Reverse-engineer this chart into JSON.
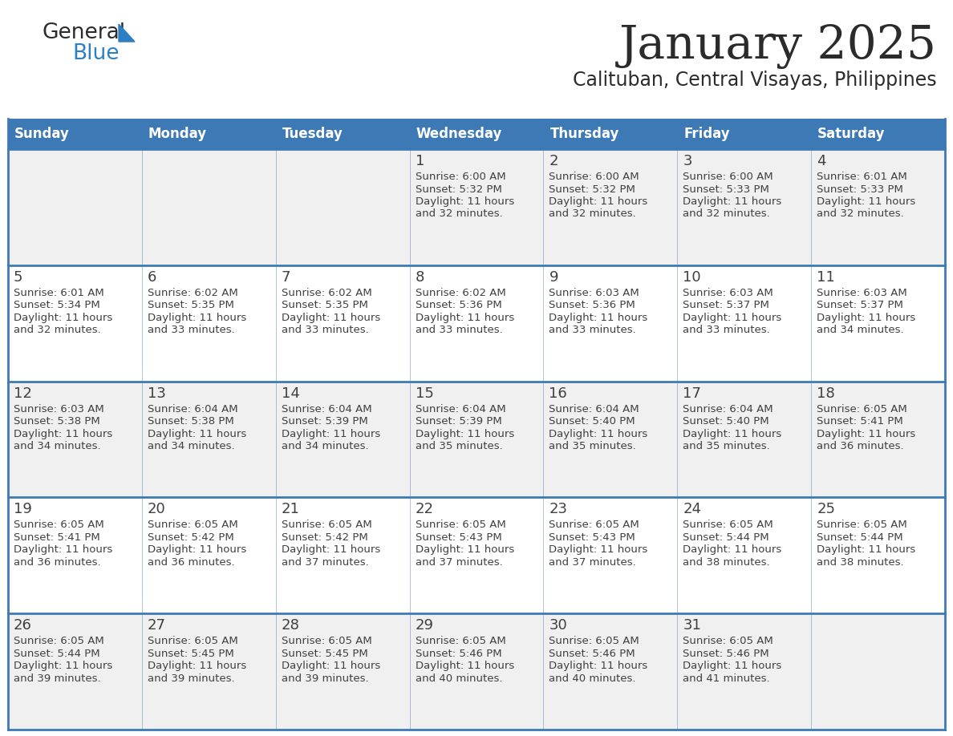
{
  "title": "January 2025",
  "subtitle": "Calituban, Central Visayas, Philippines",
  "header_bg_color": "#3d7ab5",
  "header_text_color": "#ffffff",
  "row_bg_colors": [
    "#f0f0f0",
    "#ffffff"
  ],
  "text_color": "#404040",
  "line_color": "#3d7ab5",
  "days_of_week": [
    "Sunday",
    "Monday",
    "Tuesday",
    "Wednesday",
    "Thursday",
    "Friday",
    "Saturday"
  ],
  "logo_color1": "#2b2b2b",
  "logo_color2": "#2b7fc2",
  "calendar_data": [
    [
      {
        "day": "",
        "sunrise": "",
        "sunset": "",
        "daylight_h": "",
        "daylight_m": ""
      },
      {
        "day": "",
        "sunrise": "",
        "sunset": "",
        "daylight_h": "",
        "daylight_m": ""
      },
      {
        "day": "",
        "sunrise": "",
        "sunset": "",
        "daylight_h": "",
        "daylight_m": ""
      },
      {
        "day": "1",
        "sunrise": "6:00 AM",
        "sunset": "5:32 PM",
        "daylight_h": "11",
        "daylight_m": "32"
      },
      {
        "day": "2",
        "sunrise": "6:00 AM",
        "sunset": "5:32 PM",
        "daylight_h": "11",
        "daylight_m": "32"
      },
      {
        "day": "3",
        "sunrise": "6:00 AM",
        "sunset": "5:33 PM",
        "daylight_h": "11",
        "daylight_m": "32"
      },
      {
        "day": "4",
        "sunrise": "6:01 AM",
        "sunset": "5:33 PM",
        "daylight_h": "11",
        "daylight_m": "32"
      }
    ],
    [
      {
        "day": "5",
        "sunrise": "6:01 AM",
        "sunset": "5:34 PM",
        "daylight_h": "11",
        "daylight_m": "32"
      },
      {
        "day": "6",
        "sunrise": "6:02 AM",
        "sunset": "5:35 PM",
        "daylight_h": "11",
        "daylight_m": "33"
      },
      {
        "day": "7",
        "sunrise": "6:02 AM",
        "sunset": "5:35 PM",
        "daylight_h": "11",
        "daylight_m": "33"
      },
      {
        "day": "8",
        "sunrise": "6:02 AM",
        "sunset": "5:36 PM",
        "daylight_h": "11",
        "daylight_m": "33"
      },
      {
        "day": "9",
        "sunrise": "6:03 AM",
        "sunset": "5:36 PM",
        "daylight_h": "11",
        "daylight_m": "33"
      },
      {
        "day": "10",
        "sunrise": "6:03 AM",
        "sunset": "5:37 PM",
        "daylight_h": "11",
        "daylight_m": "33"
      },
      {
        "day": "11",
        "sunrise": "6:03 AM",
        "sunset": "5:37 PM",
        "daylight_h": "11",
        "daylight_m": "34"
      }
    ],
    [
      {
        "day": "12",
        "sunrise": "6:03 AM",
        "sunset": "5:38 PM",
        "daylight_h": "11",
        "daylight_m": "34"
      },
      {
        "day": "13",
        "sunrise": "6:04 AM",
        "sunset": "5:38 PM",
        "daylight_h": "11",
        "daylight_m": "34"
      },
      {
        "day": "14",
        "sunrise": "6:04 AM",
        "sunset": "5:39 PM",
        "daylight_h": "11",
        "daylight_m": "34"
      },
      {
        "day": "15",
        "sunrise": "6:04 AM",
        "sunset": "5:39 PM",
        "daylight_h": "11",
        "daylight_m": "35"
      },
      {
        "day": "16",
        "sunrise": "6:04 AM",
        "sunset": "5:40 PM",
        "daylight_h": "11",
        "daylight_m": "35"
      },
      {
        "day": "17",
        "sunrise": "6:04 AM",
        "sunset": "5:40 PM",
        "daylight_h": "11",
        "daylight_m": "35"
      },
      {
        "day": "18",
        "sunrise": "6:05 AM",
        "sunset": "5:41 PM",
        "daylight_h": "11",
        "daylight_m": "36"
      }
    ],
    [
      {
        "day": "19",
        "sunrise": "6:05 AM",
        "sunset": "5:41 PM",
        "daylight_h": "11",
        "daylight_m": "36"
      },
      {
        "day": "20",
        "sunrise": "6:05 AM",
        "sunset": "5:42 PM",
        "daylight_h": "11",
        "daylight_m": "36"
      },
      {
        "day": "21",
        "sunrise": "6:05 AM",
        "sunset": "5:42 PM",
        "daylight_h": "11",
        "daylight_m": "37"
      },
      {
        "day": "22",
        "sunrise": "6:05 AM",
        "sunset": "5:43 PM",
        "daylight_h": "11",
        "daylight_m": "37"
      },
      {
        "day": "23",
        "sunrise": "6:05 AM",
        "sunset": "5:43 PM",
        "daylight_h": "11",
        "daylight_m": "37"
      },
      {
        "day": "24",
        "sunrise": "6:05 AM",
        "sunset": "5:44 PM",
        "daylight_h": "11",
        "daylight_m": "38"
      },
      {
        "day": "25",
        "sunrise": "6:05 AM",
        "sunset": "5:44 PM",
        "daylight_h": "11",
        "daylight_m": "38"
      }
    ],
    [
      {
        "day": "26",
        "sunrise": "6:05 AM",
        "sunset": "5:44 PM",
        "daylight_h": "11",
        "daylight_m": "39"
      },
      {
        "day": "27",
        "sunrise": "6:05 AM",
        "sunset": "5:45 PM",
        "daylight_h": "11",
        "daylight_m": "39"
      },
      {
        "day": "28",
        "sunrise": "6:05 AM",
        "sunset": "5:45 PM",
        "daylight_h": "11",
        "daylight_m": "39"
      },
      {
        "day": "29",
        "sunrise": "6:05 AM",
        "sunset": "5:46 PM",
        "daylight_h": "11",
        "daylight_m": "40"
      },
      {
        "day": "30",
        "sunrise": "6:05 AM",
        "sunset": "5:46 PM",
        "daylight_h": "11",
        "daylight_m": "40"
      },
      {
        "day": "31",
        "sunrise": "6:05 AM",
        "sunset": "5:46 PM",
        "daylight_h": "11",
        "daylight_m": "41"
      },
      {
        "day": "",
        "sunrise": "",
        "sunset": "",
        "daylight_h": "",
        "daylight_m": ""
      }
    ]
  ]
}
